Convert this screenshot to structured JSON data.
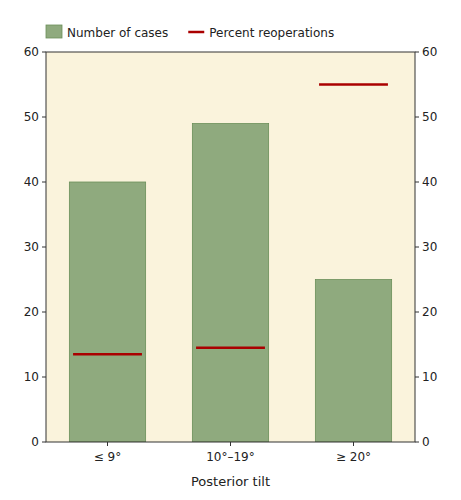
{
  "chart_data": {
    "type": "bar",
    "x_label": "Posterior tilt",
    "categories": [
      "≤ 9°",
      "10°–19°",
      "≥ 20°"
    ],
    "series": [
      {
        "name": "Number of cases",
        "type": "bar",
        "color": "#8faa7e",
        "values": [
          40,
          49,
          25
        ]
      },
      {
        "name": "Percent reoperations",
        "type": "hline",
        "color": "#aa0000",
        "values": [
          13.5,
          14.5,
          55
        ]
      }
    ],
    "ylim": [
      0,
      60
    ],
    "yticks": [
      0,
      10,
      20,
      30,
      40,
      50,
      60
    ],
    "y2lim": [
      0,
      60
    ],
    "y2ticks": [
      0,
      10,
      20,
      30,
      40,
      50,
      60
    ],
    "grid": false,
    "legend": "top"
  }
}
